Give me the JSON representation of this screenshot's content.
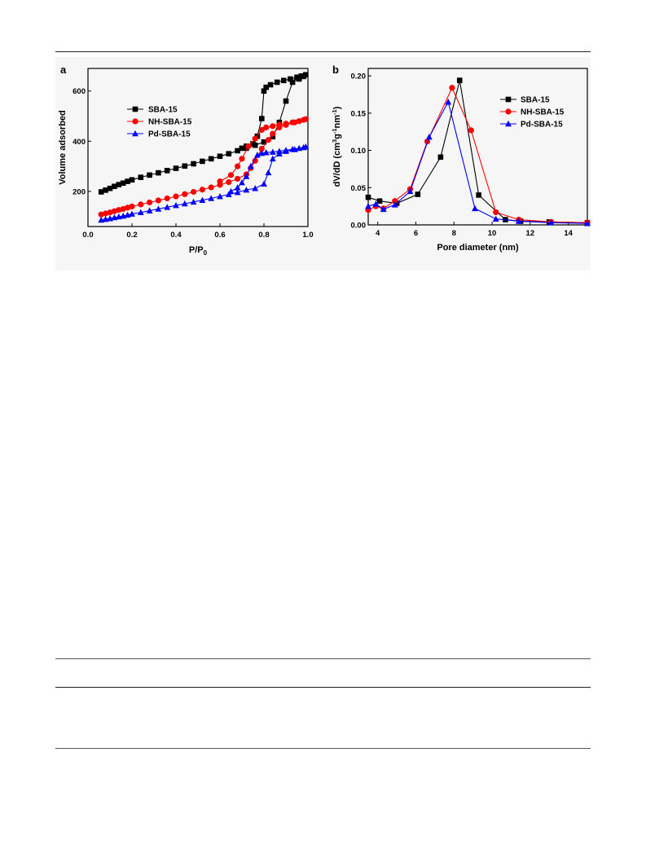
{
  "colors": {
    "SBA-15": "#000000",
    "NH-SBA-15": "#ff0000",
    "Pd-SBA-15": "#0000ff"
  },
  "chart_data": [
    {
      "panel_label": "a",
      "type": "line",
      "xlabel_main": "P/P",
      "xlabel_sub": "0",
      "ylabel": "Volume adsorbed",
      "xlim": [
        0.0,
        1.0
      ],
      "ylim": [
        60,
        690
      ],
      "xticks": [
        "0.0",
        "0.2",
        "0.4",
        "0.6",
        "0.8",
        "1.0"
      ],
      "xtick_values": [
        0.0,
        0.2,
        0.4,
        0.6,
        0.8,
        1.0
      ],
      "yticks": [
        "200",
        "400",
        "600"
      ],
      "ytick_values": [
        200,
        400,
        600
      ],
      "legend_position": "upper-left",
      "series": [
        {
          "name": "SBA-15",
          "marker": "square",
          "adsorption": [
            [
              0.06,
              198
            ],
            [
              0.08,
              205
            ],
            [
              0.1,
              212
            ],
            [
              0.12,
              220
            ],
            [
              0.14,
              227
            ],
            [
              0.16,
              233
            ],
            [
              0.18,
              240
            ],
            [
              0.2,
              246
            ],
            [
              0.24,
              256
            ],
            [
              0.28,
              265
            ],
            [
              0.32,
              274
            ],
            [
              0.36,
              283
            ],
            [
              0.4,
              292
            ],
            [
              0.44,
              301
            ],
            [
              0.48,
              310
            ],
            [
              0.52,
              320
            ],
            [
              0.56,
              330
            ],
            [
              0.6,
              340
            ],
            [
              0.64,
              350
            ],
            [
              0.68,
              362
            ],
            [
              0.72,
              372
            ],
            [
              0.76,
              384
            ],
            [
              0.8,
              397
            ],
            [
              0.84,
              418
            ],
            [
              0.87,
              475
            ],
            [
              0.9,
              560
            ],
            [
              0.93,
              635
            ],
            [
              0.96,
              648
            ],
            [
              0.98,
              658
            ]
          ],
          "desorption": [
            [
              0.99,
              665
            ],
            [
              0.97,
              660
            ],
            [
              0.95,
              655
            ],
            [
              0.92,
              648
            ],
            [
              0.89,
              642
            ],
            [
              0.86,
              635
            ],
            [
              0.83,
              625
            ],
            [
              0.81,
              615
            ],
            [
              0.8,
              600
            ],
            [
              0.79,
              490
            ],
            [
              0.77,
              420
            ],
            [
              0.75,
              390
            ],
            [
              0.72,
              380
            ],
            [
              0.7,
              372
            ]
          ]
        },
        {
          "name": "NH-SBA-15",
          "marker": "circle",
          "adsorption": [
            [
              0.06,
              108
            ],
            [
              0.08,
              112
            ],
            [
              0.1,
              116
            ],
            [
              0.12,
              121
            ],
            [
              0.14,
              126
            ],
            [
              0.16,
              130
            ],
            [
              0.18,
              135
            ],
            [
              0.2,
              140
            ],
            [
              0.24,
              148
            ],
            [
              0.28,
              156
            ],
            [
              0.32,
              164
            ],
            [
              0.36,
              172
            ],
            [
              0.4,
              180
            ],
            [
              0.44,
              189
            ],
            [
              0.48,
              198
            ],
            [
              0.52,
              207
            ],
            [
              0.56,
              216
            ],
            [
              0.6,
              226
            ],
            [
              0.64,
              237
            ],
            [
              0.68,
              250
            ],
            [
              0.72,
              268
            ],
            [
              0.74,
              293
            ],
            [
              0.76,
              322
            ],
            [
              0.79,
              370
            ],
            [
              0.82,
              405
            ],
            [
              0.84,
              430
            ],
            [
              0.87,
              455
            ],
            [
              0.9,
              465
            ],
            [
              0.94,
              475
            ],
            [
              0.98,
              485
            ]
          ],
          "desorption": [
            [
              0.99,
              488
            ],
            [
              0.96,
              480
            ],
            [
              0.93,
              475
            ],
            [
              0.9,
              470
            ],
            [
              0.87,
              465
            ],
            [
              0.84,
              460
            ],
            [
              0.81,
              455
            ],
            [
              0.79,
              445
            ],
            [
              0.76,
              410
            ],
            [
              0.73,
              380
            ],
            [
              0.7,
              330
            ],
            [
              0.68,
              300
            ],
            [
              0.65,
              265
            ],
            [
              0.6,
              240
            ]
          ]
        },
        {
          "name": "Pd-SBA-15",
          "marker": "triangle",
          "adsorption": [
            [
              0.06,
              86
            ],
            [
              0.08,
              89
            ],
            [
              0.1,
              92
            ],
            [
              0.12,
              96
            ],
            [
              0.14,
              99
            ],
            [
              0.16,
              102
            ],
            [
              0.18,
              106
            ],
            [
              0.2,
              110
            ],
            [
              0.24,
              116
            ],
            [
              0.28,
              123
            ],
            [
              0.32,
              130
            ],
            [
              0.36,
              137
            ],
            [
              0.4,
              144
            ],
            [
              0.44,
              151
            ],
            [
              0.48,
              158
            ],
            [
              0.52,
              165
            ],
            [
              0.56,
              172
            ],
            [
              0.6,
              180
            ],
            [
              0.64,
              188
            ],
            [
              0.68,
              196
            ],
            [
              0.72,
              206
            ],
            [
              0.76,
              212
            ],
            [
              0.8,
              230
            ],
            [
              0.82,
              275
            ],
            [
              0.84,
              330
            ],
            [
              0.87,
              350
            ],
            [
              0.9,
              360
            ],
            [
              0.94,
              367
            ],
            [
              0.98,
              375
            ]
          ],
          "desorption": [
            [
              0.99,
              378
            ],
            [
              0.96,
              372
            ],
            [
              0.93,
              368
            ],
            [
              0.9,
              364
            ],
            [
              0.87,
              360
            ],
            [
              0.84,
              357
            ],
            [
              0.81,
              355
            ],
            [
              0.79,
              352
            ],
            [
              0.77,
              345
            ],
            [
              0.74,
              300
            ],
            [
              0.72,
              260
            ],
            [
              0.7,
              235
            ],
            [
              0.68,
              215
            ],
            [
              0.65,
              200
            ]
          ]
        }
      ]
    },
    {
      "panel_label": "b",
      "type": "line",
      "xlabel": "Pore diameter (nm)",
      "ylabel_parts": [
        "dV/dD (cm",
        "3",
        "g",
        "-1",
        "nm",
        "-1",
        ")"
      ],
      "xlim": [
        3.5,
        15.0
      ],
      "ylim": [
        0.0,
        0.21
      ],
      "xticks": [
        "4",
        "6",
        "8",
        "10",
        "12",
        "14"
      ],
      "xtick_values": [
        4,
        6,
        8,
        10,
        12,
        14
      ],
      "yticks": [
        "0.00",
        "0.05",
        "0.10",
        "0.15",
        "0.20"
      ],
      "ytick_values": [
        0.0,
        0.05,
        0.1,
        0.15,
        0.2
      ],
      "legend_position": "upper-right",
      "series": [
        {
          "name": "SBA-15",
          "marker": "square",
          "points": [
            [
              3.5,
              0.037
            ],
            [
              4.1,
              0.032
            ],
            [
              5.0,
              0.029
            ],
            [
              6.1,
              0.041
            ],
            [
              7.3,
              0.091
            ],
            [
              8.3,
              0.194
            ],
            [
              9.3,
              0.04
            ],
            [
              10.7,
              0.007
            ],
            [
              11.5,
              0.005
            ],
            [
              13.0,
              0.004
            ],
            [
              15.0,
              0.003
            ]
          ]
        },
        {
          "name": "NH-SBA-15",
          "marker": "circle",
          "points": [
            [
              3.5,
              0.02
            ],
            [
              3.9,
              0.025
            ],
            [
              4.3,
              0.022
            ],
            [
              4.9,
              0.032
            ],
            [
              5.7,
              0.048
            ],
            [
              6.6,
              0.112
            ],
            [
              7.9,
              0.184
            ],
            [
              8.9,
              0.127
            ],
            [
              10.2,
              0.017
            ],
            [
              11.4,
              0.007
            ],
            [
              13.1,
              0.004
            ],
            [
              15.0,
              0.003
            ]
          ]
        },
        {
          "name": "Pd-SBA-15",
          "marker": "triangle",
          "points": [
            [
              3.5,
              0.025
            ],
            [
              3.9,
              0.028
            ],
            [
              4.3,
              0.021
            ],
            [
              4.9,
              0.027
            ],
            [
              5.7,
              0.045
            ],
            [
              6.7,
              0.118
            ],
            [
              7.7,
              0.165
            ],
            [
              9.1,
              0.022
            ],
            [
              10.2,
              0.008
            ],
            [
              11.4,
              0.005
            ],
            [
              13.1,
              0.003
            ],
            [
              15.0,
              0.002
            ]
          ]
        }
      ]
    }
  ]
}
